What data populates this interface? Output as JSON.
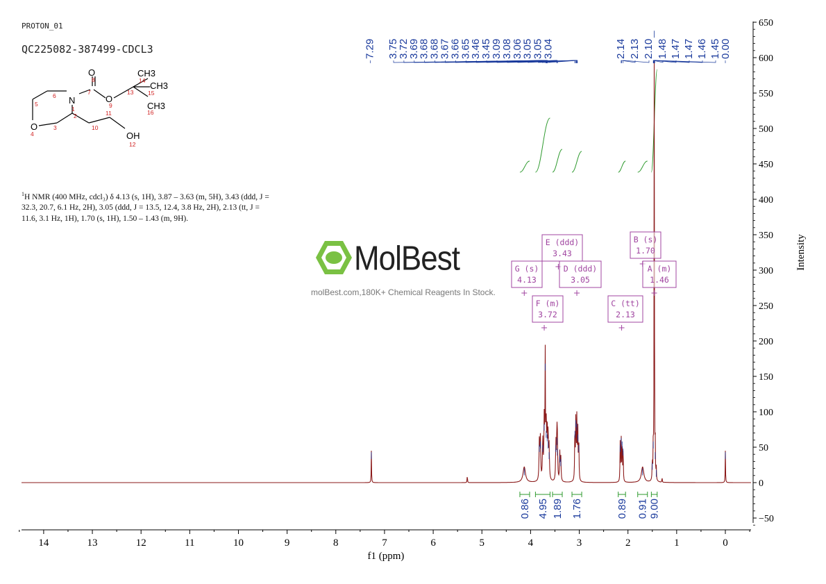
{
  "header": {
    "experiment": "PROTON_01",
    "sample": "QC225082-387499-CDCL3"
  },
  "nmr_description": {
    "nucleus_sup": "1",
    "text": "H NMR (400 MHz, cdcl₃) δ 4.13 (s, 1H), 3.87 – 3.63 (m, 5H), 3.43 (ddd, J = 32.3, 20.7, 6.1 Hz, 2H), 3.05 (ddd, J = 13.5, 12.4, 3.8 Hz, 2H), 2.13 (tt, J = 11.6, 3.1 Hz, 1H), 1.70 (s, 1H), 1.50 – 1.43 (m, 9H)."
  },
  "watermark": {
    "brand": "MolBest",
    "tagline": "molBest.com,180K+ Chemical Reagents In Stock."
  },
  "molecule": {
    "atoms": [
      "O",
      "CH3",
      "CH3",
      "CH3",
      "N",
      "O",
      "O",
      "OH"
    ],
    "numbers": [
      "1",
      "2",
      "3",
      "4",
      "5",
      "6",
      "7",
      "8",
      "9",
      "10",
      "11",
      "12",
      "13",
      "14",
      "15",
      "16"
    ]
  },
  "chart_data": {
    "type": "line",
    "xlabel": "f1 (ppm)",
    "ylabel": "Intensity",
    "xlim": [
      14.5,
      -0.5
    ],
    "ylim": [
      -60,
      650
    ],
    "x_ticks": [
      14,
      13,
      12,
      11,
      10,
      9,
      8,
      7,
      6,
      5,
      4,
      3,
      2,
      1,
      0
    ],
    "y_ticks": [
      -50,
      0,
      50,
      100,
      150,
      200,
      250,
      300,
      350,
      400,
      450,
      500,
      550,
      600,
      650
    ],
    "peak_labels": [
      "7.29",
      "3.75",
      "3.72",
      "3.69",
      "3.68",
      "3.68",
      "3.67",
      "3.66",
      "3.65",
      "3.46",
      "3.45",
      "3.09",
      "3.08",
      "3.06",
      "3.05",
      "3.05",
      "3.04",
      "2.14",
      "2.13",
      "2.10",
      "1.48",
      "1.47",
      "1.47",
      "1.46",
      "1.45",
      "0.00"
    ],
    "peaks": [
      {
        "ppm": 7.27,
        "height": 45,
        "width": 0.004
      },
      {
        "ppm": 5.3,
        "height": 12,
        "width": 0.004
      },
      {
        "ppm": 4.13,
        "height": 22,
        "width": 0.03
      },
      {
        "ppm": 3.82,
        "height": 55,
        "width": 0.008
      },
      {
        "ppm": 3.8,
        "height": 60,
        "width": 0.008
      },
      {
        "ppm": 3.75,
        "height": 55,
        "width": 0.008
      },
      {
        "ppm": 3.72,
        "height": 85,
        "width": 0.008
      },
      {
        "ppm": 3.7,
        "height": 170,
        "width": 0.005
      },
      {
        "ppm": 3.68,
        "height": 75,
        "width": 0.008
      },
      {
        "ppm": 3.66,
        "height": 70,
        "width": 0.008
      },
      {
        "ppm": 3.64,
        "height": 60,
        "width": 0.008
      },
      {
        "ppm": 3.62,
        "height": 45,
        "width": 0.008
      },
      {
        "ppm": 3.48,
        "height": 55,
        "width": 0.007
      },
      {
        "ppm": 3.46,
        "height": 65,
        "width": 0.007
      },
      {
        "ppm": 3.45,
        "height": 50,
        "width": 0.007
      },
      {
        "ppm": 3.4,
        "height": 40,
        "width": 0.007
      },
      {
        "ppm": 3.38,
        "height": 35,
        "width": 0.007
      },
      {
        "ppm": 3.09,
        "height": 75,
        "width": 0.006
      },
      {
        "ppm": 3.07,
        "height": 90,
        "width": 0.006
      },
      {
        "ppm": 3.05,
        "height": 85,
        "width": 0.006
      },
      {
        "ppm": 3.03,
        "height": 70,
        "width": 0.006
      },
      {
        "ppm": 3.01,
        "height": 55,
        "width": 0.006
      },
      {
        "ppm": 2.16,
        "height": 55,
        "width": 0.005
      },
      {
        "ppm": 2.14,
        "height": 65,
        "width": 0.005
      },
      {
        "ppm": 2.12,
        "height": 60,
        "width": 0.005
      },
      {
        "ppm": 2.1,
        "height": 50,
        "width": 0.005
      },
      {
        "ppm": 1.7,
        "height": 22,
        "width": 0.03
      },
      {
        "ppm": 1.5,
        "height": 30,
        "width": 0.005
      },
      {
        "ppm": 1.48,
        "height": 60,
        "width": 0.004
      },
      {
        "ppm": 1.46,
        "height": 640,
        "width": 0.004
      },
      {
        "ppm": 1.44,
        "height": 45,
        "width": 0.004
      },
      {
        "ppm": 1.42,
        "height": 20,
        "width": 0.004
      },
      {
        "ppm": 1.3,
        "height": 8,
        "width": 0.004
      },
      {
        "ppm": 0.0,
        "height": 45,
        "width": 0.004
      }
    ],
    "multiplets": [
      {
        "letter": "E",
        "type": "ddd",
        "shift": "3.43",
        "ppm": 3.43
      },
      {
        "letter": "B",
        "type": "s",
        "shift": "1.70",
        "ppm": 1.7
      },
      {
        "letter": "G",
        "type": "s",
        "shift": "4.13",
        "ppm": 4.13
      },
      {
        "letter": "D",
        "type": "ddd",
        "shift": "3.05",
        "ppm": 3.05
      },
      {
        "letter": "A",
        "type": "m",
        "shift": "1.46",
        "ppm": 1.46
      },
      {
        "letter": "F",
        "type": "m",
        "shift": "3.72",
        "ppm": 3.72
      },
      {
        "letter": "C",
        "type": "tt",
        "shift": "2.13",
        "ppm": 2.13
      }
    ],
    "integrals": [
      {
        "value": "0.86",
        "from": 4.22,
        "to": 4.02
      },
      {
        "value": "4.95",
        "from": 3.9,
        "to": 3.6
      },
      {
        "value": "1.89",
        "from": 3.55,
        "to": 3.35
      },
      {
        "value": "1.76",
        "from": 3.15,
        "to": 2.95
      },
      {
        "value": "0.89",
        "from": 2.2,
        "to": 2.05
      },
      {
        "value": "0.91",
        "from": 1.8,
        "to": 1.6
      },
      {
        "value": "9.00",
        "from": 1.52,
        "to": 1.4
      }
    ]
  },
  "colors": {
    "spectrum": "#8b1a1a",
    "peak_label": "#1a3a9c",
    "integral": "#2e9a2e",
    "multiplet": "#a044a0",
    "axis": "#000000",
    "brand_green": "#7ac143"
  }
}
